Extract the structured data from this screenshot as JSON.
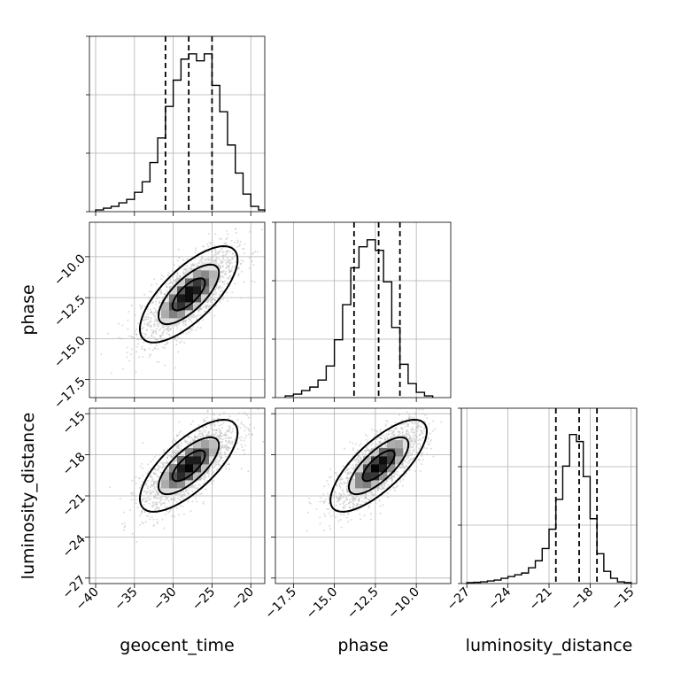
{
  "chart_data": {
    "type": "corner",
    "parameters": [
      "geocent_time",
      "phase",
      "luminosity_distance"
    ],
    "axis_labels": {
      "geocent_time": "geocent_time",
      "phase": "phase",
      "luminosity_distance": "luminosity_distance"
    },
    "ranges": {
      "geocent_time": [
        -40.8,
        -18.2
      ],
      "phase": [
        -18.6,
        -7.9
      ],
      "luminosity_distance": [
        -27.4,
        -14.6
      ]
    },
    "ticks": {
      "geocent_time": [
        -40,
        -35,
        -30,
        -25,
        -20
      ],
      "phase_x": [
        -17.5,
        -15.0,
        -12.5,
        -10.0
      ],
      "phase_y": [
        -10.0,
        -12.5,
        -15.0,
        -17.5
      ],
      "luminosity_distance": [
        -27,
        -24,
        -21,
        -18,
        -15
      ]
    },
    "tick_labels": {
      "geocent_time": [
        "−40",
        "−35",
        "−30",
        "−25",
        "−20"
      ],
      "phase_x": [
        "−17.5",
        "−15.0",
        "−12.5",
        "−10.0"
      ],
      "phase_y": [
        "−10.0",
        "−12.5",
        "−15.0",
        "−17.5"
      ],
      "luminosity_distance": [
        "−27",
        "−24",
        "−21",
        "−18",
        "−15"
      ]
    },
    "quantiles": {
      "geocent_time": [
        -31.0,
        -28.0,
        -25.0
      ],
      "phase": [
        -13.8,
        -12.3,
        -11.0
      ],
      "luminosity_distance": [
        -20.5,
        -18.8,
        -17.5
      ]
    },
    "histograms": {
      "geocent_time": {
        "edges_start": -40.0,
        "bin_width": 1.0,
        "counts": [
          0.01,
          0.02,
          0.03,
          0.05,
          0.07,
          0.11,
          0.17,
          0.28,
          0.42,
          0.6,
          0.75,
          0.87,
          0.9,
          0.86,
          0.9,
          0.72,
          0.57,
          0.38,
          0.22,
          0.1,
          0.03,
          0.01
        ]
      },
      "phase": {
        "edges_start": -18.0,
        "bin_width": 0.5,
        "counts": [
          0.01,
          0.02,
          0.04,
          0.06,
          0.1,
          0.18,
          0.33,
          0.53,
          0.74,
          0.86,
          0.9,
          0.84,
          0.66,
          0.4,
          0.19,
          0.08,
          0.03,
          0.01
        ]
      },
      "luminosity_distance": {
        "edges_start": -27.0,
        "bin_width": 0.5,
        "counts": [
          0.005,
          0.007,
          0.01,
          0.015,
          0.02,
          0.03,
          0.04,
          0.05,
          0.06,
          0.09,
          0.13,
          0.2,
          0.31,
          0.48,
          0.67,
          0.85,
          0.81,
          0.61,
          0.37,
          0.17,
          0.07,
          0.03,
          0.01,
          0.005
        ]
      }
    },
    "joint": {
      "phase_vs_geocent_time": {
        "center": [
          -28.0,
          -12.3
        ],
        "sd": [
          3.0,
          1.4
        ],
        "rho": 0.72
      },
      "luminosity_distance_vs_geocent_time": {
        "center": [
          -28.0,
          -18.8
        ],
        "sd": [
          3.0,
          1.6
        ],
        "rho": 0.72
      },
      "luminosity_distance_vs_phase": {
        "center": [
          -12.3,
          -18.8
        ],
        "sd": [
          1.4,
          1.6
        ],
        "rho": 0.75
      }
    },
    "contour_levels": [
      "0.5-sigma",
      "1.0-sigma",
      "2.0-sigma"
    ],
    "scatter_points_per_panel": 1800,
    "grid": true,
    "colors": {
      "points": "#bdbdbd",
      "lines": "#000000",
      "grid": "#b0b0b0"
    }
  }
}
